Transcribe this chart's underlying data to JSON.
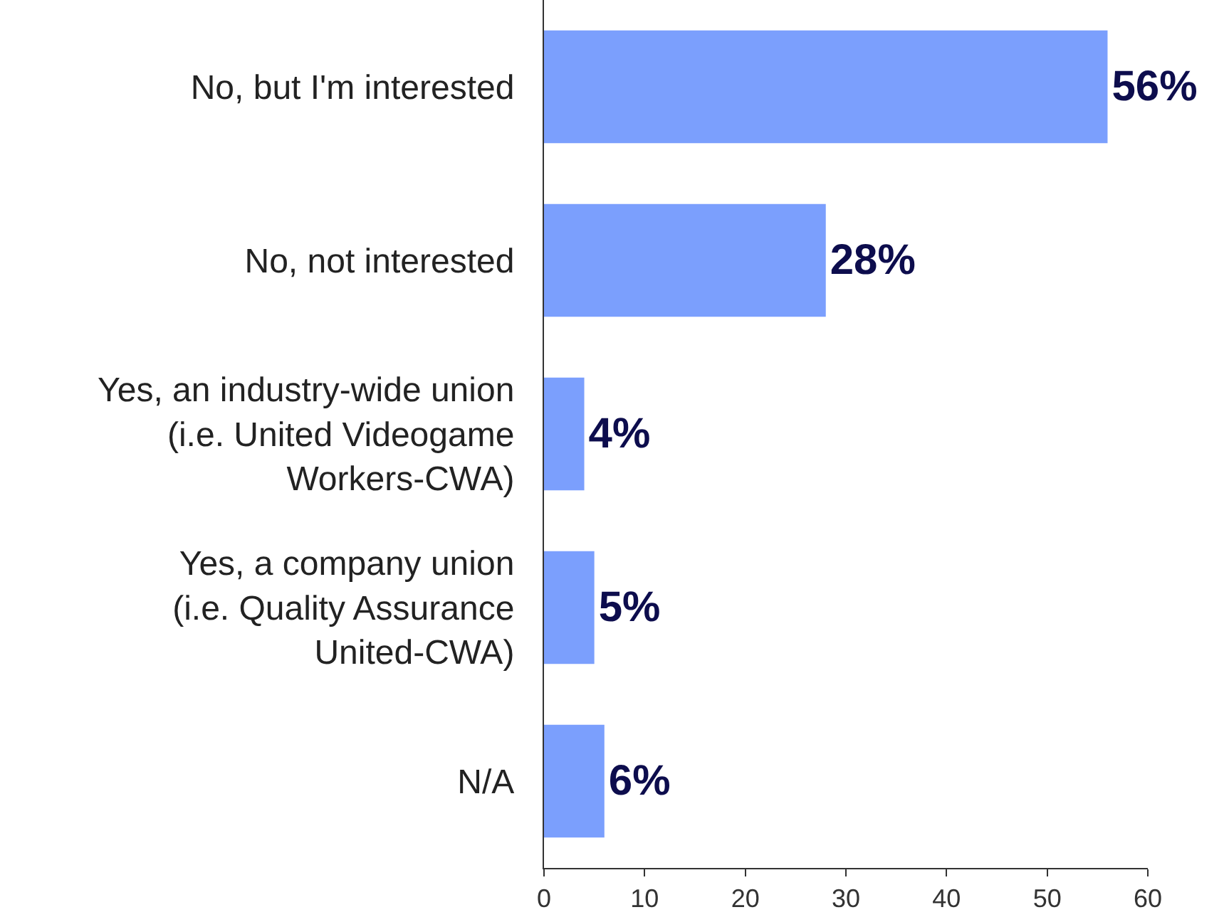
{
  "chart_data": {
    "type": "bar",
    "orientation": "horizontal",
    "categories": [
      "No, but I'm interested",
      "No, not interested",
      "Yes, an industry-wide union\n(i.e. United Videogame\nWorkers-CWA)",
      "Yes, a company union\n(i.e. Quality Assurance\nUnited-CWA)",
      "N/A"
    ],
    "values": [
      56,
      28,
      4,
      5,
      6
    ],
    "value_labels": [
      "56%",
      "28%",
      "4%",
      "5%",
      "6%"
    ],
    "color": "#7b9ffd",
    "xlim": [
      0,
      60
    ],
    "xticks": [
      0,
      10,
      20,
      30,
      40,
      50,
      60
    ]
  }
}
